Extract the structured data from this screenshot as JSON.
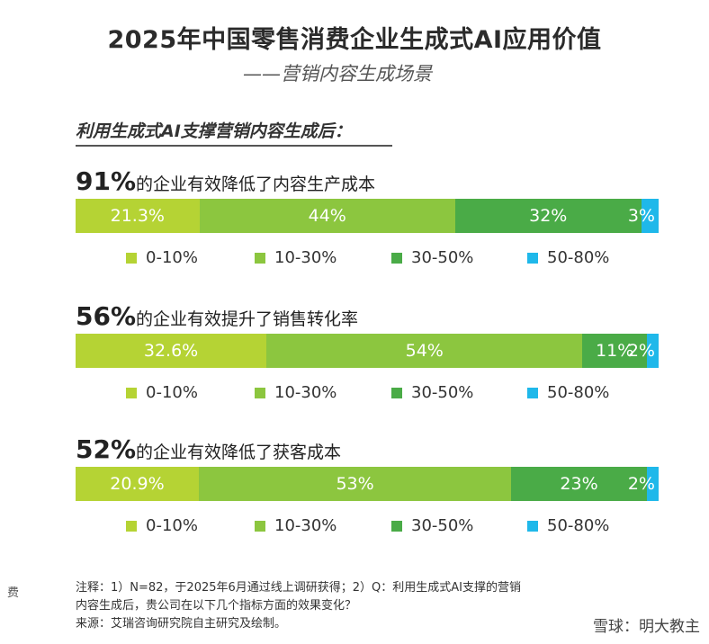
{
  "colors": [
    "#b5d334",
    "#8cc63f",
    "#4aab47",
    "#1fb8ea"
  ],
  "side_mark": "费",
  "watermark": "雪球：明大教主",
  "chart_data": {
    "type": "bar",
    "orientation": "horizontal-stacked-100",
    "title": "2025年中国零售消费企业生成式AI应用价值",
    "subtitle": "——营销内容生成场景",
    "intro": "利用生成式AI支撑营销内容生成后：",
    "legend": [
      "0-10%",
      "10-30%",
      "30-50%",
      "50-80%"
    ],
    "charts": [
      {
        "headline_pct": "91%",
        "headline_text": "的企业有效降低了内容生产成本",
        "values": [
          21.3,
          44,
          32,
          3
        ],
        "labels": [
          "21.3%",
          "44%",
          "32%",
          "3%"
        ]
      },
      {
        "headline_pct": "56%",
        "headline_text": "的企业有效提升了销售转化率",
        "values": [
          32.6,
          54,
          11,
          2
        ],
        "labels": [
          "32.6%",
          "54%",
          "11%",
          "2%"
        ]
      },
      {
        "headline_pct": "52%",
        "headline_text": "的企业有效降低了获客成本",
        "values": [
          20.9,
          53,
          23,
          2
        ],
        "labels": [
          "20.9%",
          "53%",
          "23%",
          "2%"
        ]
      }
    ]
  },
  "notes": {
    "line1": "注释：1）N=82，于2025年6月通过线上调研获得；2）Q：利用生成式AI支撑的营销",
    "line2": "内容生成后，贵公司在以下几个指标方面的效果变化？",
    "line3": "来源：艾瑞咨询研究院自主研究及绘制。"
  }
}
